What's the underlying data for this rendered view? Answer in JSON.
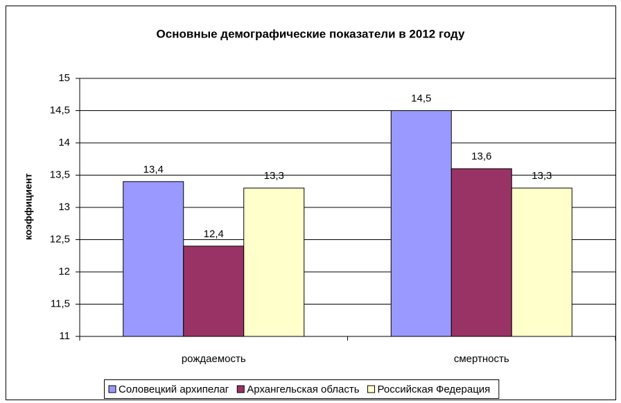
{
  "chart_data": {
    "type": "bar",
    "title": "Основные демографические показатели в 2012 году",
    "y_label": "коэффициент",
    "categories": [
      "рождаемость",
      "смертность"
    ],
    "series": [
      {
        "name": "Соловецкий архипелаг",
        "color": "#9999ff",
        "values": [
          13.4,
          14.5
        ],
        "value_labels": [
          "13,4",
          "14,5"
        ]
      },
      {
        "name": "Архангельская область",
        "color": "#993366",
        "values": [
          12.4,
          13.6
        ],
        "value_labels": [
          "12,4",
          "13,6"
        ]
      },
      {
        "name": "Российская Федерация",
        "color": "#ffffcc",
        "values": [
          13.3,
          13.3
        ],
        "value_labels": [
          "13,3",
          "13,3"
        ]
      }
    ],
    "ylim": [
      11,
      15
    ],
    "yticks": [
      11,
      {
        "value": 11.5,
        "label": "11,5"
      },
      12,
      {
        "value": 12.5,
        "label": "12,5"
      },
      13,
      {
        "value": 13.5,
        "label": "13,5"
      },
      14,
      {
        "value": 14.5,
        "label": "14,5"
      },
      15
    ],
    "grid": true,
    "legend": "bottom"
  }
}
